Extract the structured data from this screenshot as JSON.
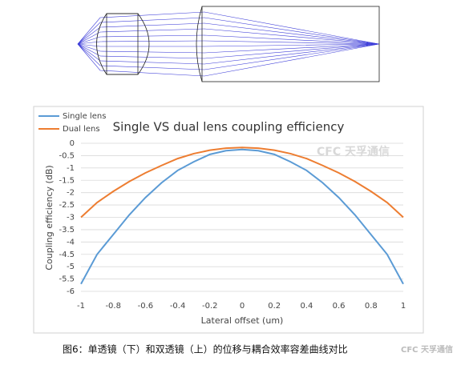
{
  "chart_data": {
    "type": "line",
    "title": "Single VS dual lens coupling efficiency",
    "x_label": "Lateral offset (um)",
    "y_label": "Coupling efficiency (dB)",
    "x": [
      -1,
      -0.9,
      -0.8,
      -0.7,
      -0.6,
      -0.5,
      -0.4,
      -0.3,
      -0.2,
      -0.1,
      0,
      0.1,
      0.2,
      0.3,
      0.4,
      0.5,
      0.6,
      0.7,
      0.8,
      0.9,
      1
    ],
    "series": [
      {
        "name": "Single lens",
        "color": "#5b9bd5",
        "values": [
          -5.7,
          -4.5,
          -3.7,
          -2.9,
          -2.2,
          -1.6,
          -1.1,
          -0.75,
          -0.45,
          -0.3,
          -0.25,
          -0.3,
          -0.45,
          -0.75,
          -1.1,
          -1.6,
          -2.2,
          -2.9,
          -3.7,
          -4.5,
          -5.7
        ]
      },
      {
        "name": "Dual lens",
        "color": "#ed7d31",
        "values": [
          -3.0,
          -2.4,
          -1.95,
          -1.55,
          -1.2,
          -0.9,
          -0.62,
          -0.42,
          -0.28,
          -0.2,
          -0.17,
          -0.2,
          -0.28,
          -0.42,
          -0.62,
          -0.9,
          -1.2,
          -1.55,
          -1.95,
          -2.4,
          -3.0
        ]
      }
    ],
    "xlim": [
      -1,
      1
    ],
    "xticks": [
      -1,
      -0.8,
      -0.6,
      -0.4,
      -0.2,
      0,
      0.2,
      0.4,
      0.6,
      0.8,
      1
    ],
    "ylim": [
      -6,
      0
    ],
    "yticks": [
      0,
      -0.5,
      -1,
      -1.5,
      -2,
      -2.5,
      -3,
      -3.5,
      -4,
      -4.5,
      -5,
      -5.5,
      -6
    ],
    "grid": true,
    "legend": "top-left"
  },
  "watermark": "CFC 天孚通信",
  "caption": "图6：单透镜（下）和双透镜（上）的位移与耦合效率容差曲线对比"
}
